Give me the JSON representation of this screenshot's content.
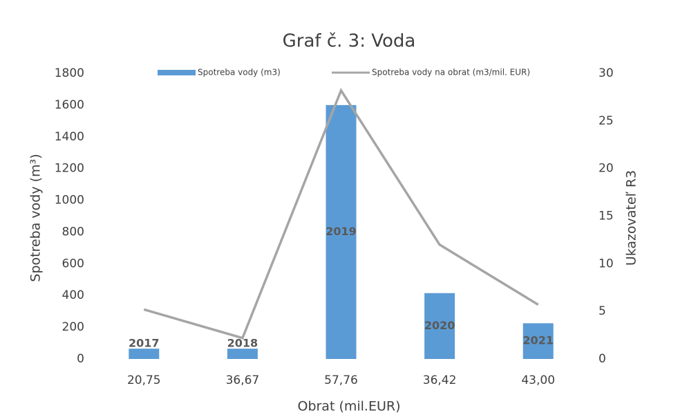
{
  "chart_data": {
    "type": "bar",
    "title": "Graf č. 3: Voda",
    "categories": [
      "20,75",
      "36,67",
      "57,76",
      "36,42",
      "43,00"
    ],
    "series": [
      {
        "name": "Spotreba vody (m3)",
        "color": "#5b9bd5",
        "values": [
          65,
          65,
          1600,
          415,
          225
        ],
        "annotations": [
          "2017",
          "2018",
          "2019",
          "2020",
          "2021"
        ]
      },
      {
        "name": "Spotreba vody na obrat (m3/mil. EUR)",
        "color": "#a5a5a5",
        "axis": "y2",
        "values": [
          5.2,
          2.2,
          28.2,
          12,
          5.7
        ]
      }
    ],
    "xlabel": "Obrat (mil.EUR)",
    "ylabel": "Spotreba vody (m³)",
    "y2label": "Ukazovateľ R3",
    "ylim": [
      0,
      1800
    ],
    "yticks": [
      0,
      200,
      400,
      600,
      800,
      1000,
      1200,
      1400,
      1600,
      1800
    ],
    "y2lim": [
      0,
      30
    ],
    "y2ticks": [
      0,
      5,
      10,
      15,
      20,
      25,
      30
    ],
    "grid": false,
    "legend": "top"
  }
}
